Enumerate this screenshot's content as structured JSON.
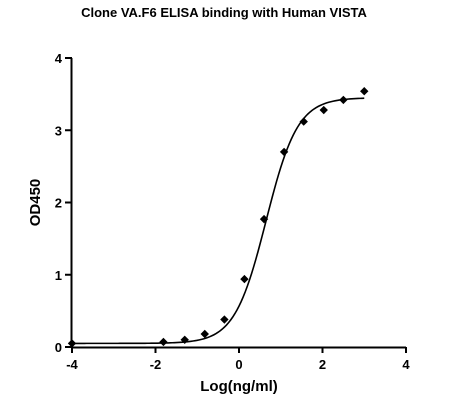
{
  "chart_data": {
    "type": "scatter",
    "title": "Clone VA.F6 ELISA binding with Human VISTA",
    "xlabel": "Log(ng/ml)",
    "ylabel": "OD450",
    "xlim": [
      -4,
      4
    ],
    "ylim": [
      0,
      4
    ],
    "x_ticks": [
      "-4",
      "-2",
      "0",
      "2",
      "4"
    ],
    "y_ticks": [
      "0",
      "1",
      "2",
      "3",
      "4"
    ],
    "grid": false,
    "legend": "none",
    "marker": "diamond",
    "series": [
      {
        "x": [
          -4.0,
          -1.81,
          -1.3,
          -0.82,
          -0.35,
          0.13,
          0.6,
          1.08,
          1.55,
          2.03,
          2.5,
          3.0
        ],
        "y": [
          0.05,
          0.07,
          0.1,
          0.18,
          0.38,
          0.94,
          1.77,
          2.7,
          3.12,
          3.28,
          3.42,
          3.54
        ],
        "fit": "sigmoidal"
      }
    ],
    "colors": {
      "points": "#000000",
      "curve": "#000000",
      "axes": "#000000"
    }
  }
}
